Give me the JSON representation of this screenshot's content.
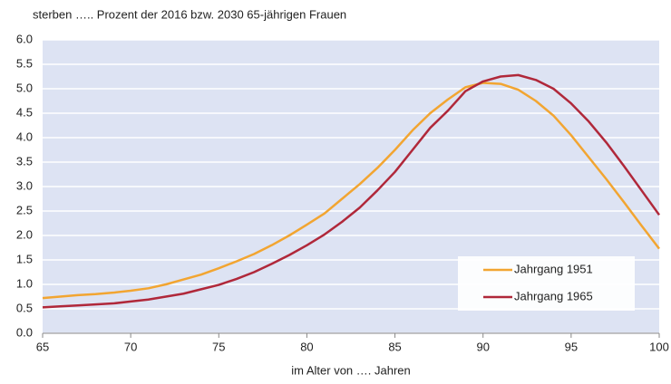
{
  "chart_data": {
    "type": "line",
    "title": "sterben ….. Prozent der 2016 bzw. 2030 65-jährigen Frauen",
    "x_label": "im Alter von …. Jahren",
    "x": [
      65,
      66,
      67,
      68,
      69,
      70,
      71,
      72,
      73,
      74,
      75,
      76,
      77,
      78,
      79,
      80,
      81,
      82,
      83,
      84,
      85,
      86,
      87,
      88,
      89,
      90,
      91,
      92,
      93,
      94,
      95,
      96,
      97,
      98,
      99,
      100
    ],
    "series": [
      {
        "name": "Jahrgang 1951",
        "color": "#f2a531",
        "values": [
          0.72,
          0.75,
          0.78,
          0.8,
          0.83,
          0.87,
          0.92,
          1.0,
          1.1,
          1.2,
          1.33,
          1.47,
          1.62,
          1.8,
          2.0,
          2.22,
          2.45,
          2.75,
          3.05,
          3.38,
          3.75,
          4.15,
          4.5,
          4.78,
          5.03,
          5.12,
          5.1,
          4.98,
          4.75,
          4.45,
          4.05,
          3.6,
          3.15,
          2.68,
          2.2,
          1.73
        ]
      },
      {
        "name": "Jahrgang 1965",
        "color": "#b0283a",
        "values": [
          0.53,
          0.55,
          0.57,
          0.59,
          0.61,
          0.65,
          0.69,
          0.75,
          0.81,
          0.9,
          0.99,
          1.11,
          1.25,
          1.42,
          1.6,
          1.8,
          2.02,
          2.28,
          2.57,
          2.92,
          3.3,
          3.75,
          4.2,
          4.55,
          4.95,
          5.15,
          5.25,
          5.28,
          5.18,
          5.0,
          4.7,
          4.33,
          3.9,
          3.42,
          2.92,
          2.42
        ]
      }
    ],
    "xlim": [
      65,
      100
    ],
    "xticks": [
      65,
      70,
      75,
      80,
      85,
      90,
      95,
      100
    ],
    "ylim": [
      0,
      6
    ],
    "yticks": [
      {
        "value": 0,
        "label": "0.0"
      },
      0.5,
      {
        "value": 1,
        "label": "1.0"
      },
      1.5,
      {
        "value": 2,
        "label": "2.0"
      },
      2.5,
      {
        "value": 3,
        "label": "3.0"
      },
      3.5,
      {
        "value": 4,
        "label": "4.0"
      },
      4.5,
      {
        "value": 5,
        "label": "5.0"
      },
      5.5,
      {
        "value": 6,
        "label": "6.0"
      }
    ],
    "grid": true,
    "legend": "lower right"
  }
}
